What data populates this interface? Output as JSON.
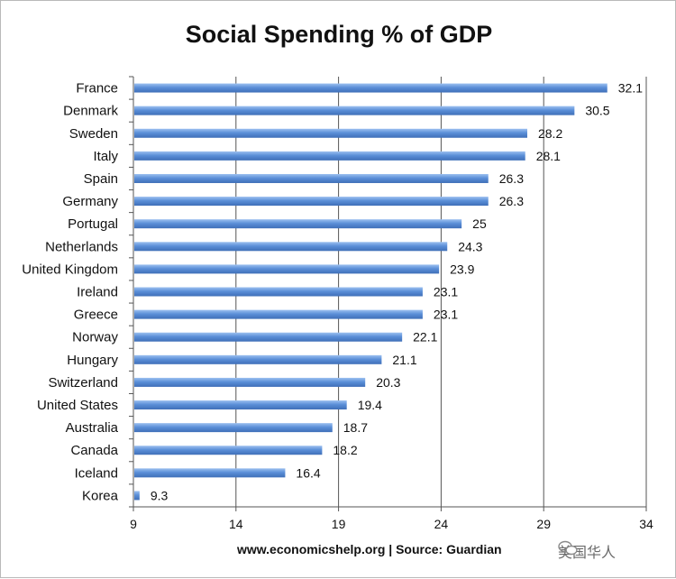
{
  "chart_data": {
    "type": "bar",
    "orientation": "horizontal",
    "title": "Social Spending % of GDP",
    "categories": [
      "France",
      "Denmark",
      "Sweden",
      "Italy",
      "Spain",
      "Germany",
      "Portugal",
      "Netherlands",
      "United Kingdom",
      "Ireland",
      "Greece",
      "Norway",
      "Hungary",
      "Switzerland",
      "United States",
      "Australia",
      "Canada",
      "Iceland",
      "Korea"
    ],
    "values": [
      32.1,
      30.5,
      28.2,
      28.1,
      26.3,
      26.3,
      25,
      24.3,
      23.9,
      23.1,
      23.1,
      22.1,
      21.1,
      20.3,
      19.4,
      18.7,
      18.2,
      16.4,
      9.3
    ],
    "value_labels": [
      "32.1",
      "30.5",
      "28.2",
      "28.1",
      "26.3",
      "26.3",
      "25",
      "24.3",
      "23.9",
      "23.1",
      "23.1",
      "22.1",
      "21.1",
      "20.3",
      "19.4",
      "18.7",
      "18.2",
      "16.4",
      "9.3"
    ],
    "xlim": [
      9,
      34
    ],
    "xticks": [
      9,
      14,
      19,
      24,
      29,
      34
    ],
    "xtick_labels": [
      "9",
      "14",
      "19",
      "24",
      "29",
      "34"
    ],
    "xlabel": "",
    "ylabel": "",
    "grid": "vertical",
    "bar_color": "#5b8fd8"
  },
  "source": "www.economicshelp.org | Source: Guardian",
  "watermark": "美国华人"
}
